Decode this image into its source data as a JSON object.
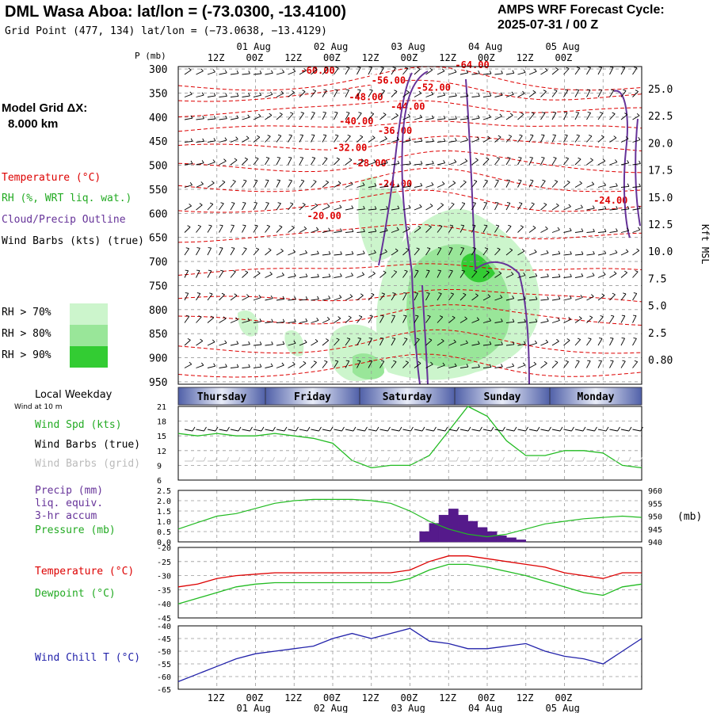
{
  "header": {
    "title": "DML Wasa Aboa:  lat/lon = (-73.0300, -13.4100)",
    "subtitle": "Grid Point (477, 134) lat/lon = (−73.0638, −13.4129)",
    "cycle_line1": "AMPS WRF Forecast Cycle:",
    "cycle_line2": "2025-07-31 / 00  Z"
  },
  "legend": {
    "grid_label_1": "Model Grid ΔX:",
    "grid_label_2": "8.000 km",
    "temperature": "Temperature (°C)",
    "rh": "RH (%, WRT liq. wat.)",
    "cloud": "Cloud/Precip Outline",
    "wind": "Wind Barbs (kts) (true)",
    "rh70": "RH > 70%",
    "rh80": "RH > 80%",
    "rh90": "RH > 90%",
    "colors": {
      "temp": "#dd0000",
      "rh": "#22aa22",
      "cloud": "#663399",
      "rh70": "#ccf5cc",
      "rh80": "#99e699",
      "rh90": "#33cc33"
    }
  },
  "time_axis": {
    "top_dates": [
      "01 Aug",
      "02 Aug",
      "03 Aug",
      "04 Aug",
      "05 Aug"
    ],
    "top_hours": [
      "12Z",
      "00Z",
      "12Z",
      "00Z",
      "12Z",
      "00Z",
      "12Z",
      "00Z",
      "12Z",
      "00Z"
    ],
    "weekdays": [
      "Thursday",
      "Friday",
      "Saturday",
      "Sunday",
      "Monday"
    ]
  },
  "chart_data": [
    {
      "type": "heatmap",
      "name_panel": "cross-section",
      "ylabel_left": "P (mb)",
      "ylabel_right": "Kft MSL",
      "y_ticks": [
        300,
        350,
        400,
        450,
        500,
        550,
        600,
        650,
        700,
        750,
        800,
        850,
        900,
        950
      ],
      "y_right_ticks": [
        "25.0",
        "22.5",
        "20.0",
        "17.5",
        "15.0",
        "12.5",
        "10.0",
        "7.5",
        "5.0",
        "2.5",
        "0.80"
      ],
      "temperature_labels": [
        {
          "label": "-60.00",
          "hour": 38,
          "p": 310
        },
        {
          "label": "-64.00",
          "hour": 86,
          "p": 298
        },
        {
          "label": "-56.00",
          "hour": 60,
          "p": 330
        },
        {
          "label": "-52.00",
          "hour": 74,
          "p": 345
        },
        {
          "label": "-48.00",
          "hour": 53,
          "p": 365
        },
        {
          "label": "-44.00",
          "hour": 66,
          "p": 385
        },
        {
          "label": "-40.00",
          "hour": 50,
          "p": 415
        },
        {
          "label": "-36.00",
          "hour": 62,
          "p": 435
        },
        {
          "label": "-32.00",
          "hour": 48,
          "p": 470
        },
        {
          "label": "-28.00",
          "hour": 54,
          "p": 502
        },
        {
          "label": "-24.00",
          "hour": 62,
          "p": 545
        },
        {
          "label": "-24.00",
          "hour": 129,
          "p": 580
        },
        {
          "label": "-20.00",
          "hour": 40,
          "p": 612
        }
      ]
    },
    {
      "type": "line",
      "name_panel": "wind",
      "labels": {
        "weekday": "Local Weekday",
        "note": "Wind at 10 m",
        "spd": "Wind Spd (kts)",
        "barbs_true": "Wind Barbs (true)",
        "barbs_grid": "Wind Barbs (grid)"
      },
      "ylim": [
        6,
        21
      ],
      "y_ticks": [
        6,
        9,
        12,
        15,
        18,
        21
      ],
      "series": [
        {
          "name": "Wind Spd (kts)",
          "color": "#22bb22",
          "x": [
            0,
            6,
            12,
            18,
            24,
            30,
            36,
            42,
            48,
            54,
            60,
            66,
            72,
            78,
            84,
            90,
            96,
            102,
            108,
            114,
            120,
            126,
            132,
            138,
            144
          ],
          "y": [
            15.5,
            15,
            15.5,
            15,
            15,
            15.5,
            15,
            14.5,
            13.5,
            10,
            8.5,
            9,
            9,
            11,
            16,
            21,
            19,
            14,
            11,
            11,
            12,
            12,
            11.5,
            9,
            8.5
          ]
        }
      ]
    },
    {
      "type": "bar",
      "name_panel": "precip-pressure",
      "labels": {
        "precip": "Precip (mm)",
        "equiv": "liq. equiv.",
        "accum": "3-hr accum",
        "pressure": "Pressure (mb)",
        "unit_right": "(mb)"
      },
      "ylim": [
        0,
        2.5
      ],
      "y_ticks": [
        "0.0",
        "0.5",
        "1.0",
        "1.5",
        "2.0",
        "2.5"
      ],
      "y_right_ticks": [
        "940",
        "945",
        "950",
        "955",
        "960"
      ],
      "precip_x": [
        75,
        78,
        81,
        84,
        87,
        90,
        93,
        96,
        99,
        102,
        105
      ],
      "precip_y": [
        0.5,
        0.9,
        1.3,
        1.6,
        1.3,
        1.0,
        0.7,
        0.5,
        0.3,
        0.2,
        0.1
      ],
      "series": [
        {
          "name": "Pressure (mb)",
          "color": "#22bb22",
          "x": [
            0,
            6,
            12,
            18,
            24,
            30,
            36,
            42,
            48,
            54,
            60,
            66,
            72,
            78,
            84,
            90,
            96,
            102,
            108,
            114,
            120,
            126,
            132,
            138,
            144
          ],
          "y": [
            945,
            947.5,
            950,
            951,
            953,
            955,
            956,
            956.5,
            956.5,
            956.5,
            956,
            955,
            952,
            948,
            945,
            943,
            942,
            943,
            945,
            947,
            948,
            949,
            949.5,
            950,
            949.5
          ]
        }
      ]
    },
    {
      "type": "line",
      "name_panel": "temperature",
      "labels": {
        "temp": "Temperature (°C)",
        "dew": "Dewpoint (°C)"
      },
      "ylim": [
        -45,
        -20
      ],
      "y_ticks": [
        -45,
        -40,
        -35,
        -30,
        -25,
        -20
      ],
      "series": [
        {
          "name": "Temperature (°C)",
          "color": "#dd0000",
          "x": [
            0,
            6,
            12,
            18,
            24,
            30,
            36,
            42,
            48,
            54,
            60,
            66,
            72,
            78,
            84,
            90,
            96,
            102,
            108,
            114,
            120,
            126,
            132,
            138,
            144
          ],
          "y": [
            -34,
            -33,
            -31,
            -30,
            -29.5,
            -29,
            -29,
            -29,
            -29,
            -29,
            -29,
            -29,
            -28,
            -25,
            -23,
            -23,
            -24,
            -25,
            -26,
            -27,
            -29,
            -30,
            -31,
            -29,
            -29
          ]
        },
        {
          "name": "Dewpoint (°C)",
          "color": "#22bb22",
          "x": [
            0,
            6,
            12,
            18,
            24,
            30,
            36,
            42,
            48,
            54,
            60,
            66,
            72,
            78,
            84,
            90,
            96,
            102,
            108,
            114,
            120,
            126,
            132,
            138,
            144
          ],
          "y": [
            -40,
            -38,
            -36,
            -34,
            -33,
            -32.5,
            -32.5,
            -32.5,
            -32.5,
            -32.5,
            -32.5,
            -32.5,
            -31,
            -28,
            -26,
            -26,
            -27,
            -28.5,
            -30,
            -32,
            -34,
            -36,
            -37,
            -34,
            -33
          ]
        }
      ]
    },
    {
      "type": "line",
      "name_panel": "windchill",
      "labels": {
        "wc": "Wind Chill T (°C)"
      },
      "ylim": [
        -65,
        -40
      ],
      "y_ticks": [
        -65,
        -60,
        -55,
        -50,
        -45,
        -40
      ],
      "series": [
        {
          "name": "Wind Chill T (°C)",
          "color": "#2222aa",
          "x": [
            0,
            6,
            12,
            18,
            24,
            30,
            36,
            42,
            48,
            54,
            60,
            66,
            72,
            78,
            84,
            90,
            96,
            102,
            108,
            114,
            120,
            126,
            132,
            138,
            144
          ],
          "y": [
            -62,
            -59,
            -56,
            -53,
            -51,
            -50,
            -49,
            -48,
            -45,
            -43,
            -45,
            -43,
            -41,
            -46,
            -47,
            -49,
            -49,
            -48,
            -47,
            -50,
            -52,
            -53,
            -55,
            -50,
            -45
          ]
        }
      ]
    }
  ],
  "bottom_axis": {
    "hours": [
      "12Z",
      "00Z",
      "12Z",
      "00Z",
      "12Z",
      "00Z",
      "12Z",
      "00Z",
      "12Z",
      "00Z"
    ],
    "dates": [
      "01 Aug",
      "02 Aug",
      "03 Aug",
      "04 Aug",
      "05 Aug"
    ]
  }
}
